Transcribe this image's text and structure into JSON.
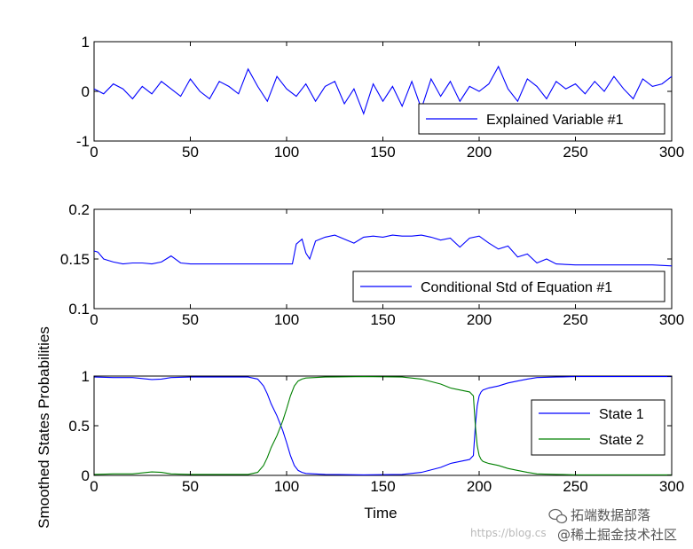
{
  "chart_data": [
    {
      "type": "line",
      "title": "",
      "xlabel": "",
      "ylabel": "",
      "xlim": [
        0,
        300
      ],
      "ylim": [
        -1,
        1
      ],
      "xticks": [
        "0",
        "50",
        "100",
        "150",
        "200",
        "250",
        "300"
      ],
      "yticks": [
        "-1",
        "0",
        "1"
      ],
      "legend": "bottom-right",
      "series": [
        {
          "name": "Explained Variable #1",
          "color": "#0000ff",
          "x": [
            0,
            5,
            10,
            15,
            20,
            25,
            30,
            35,
            40,
            45,
            50,
            55,
            60,
            65,
            70,
            75,
            80,
            85,
            90,
            95,
            100,
            105,
            110,
            115,
            120,
            125,
            130,
            135,
            140,
            145,
            150,
            155,
            160,
            165,
            170,
            175,
            180,
            185,
            190,
            195,
            200,
            205,
            210,
            215,
            220,
            225,
            230,
            235,
            240,
            245,
            250,
            255,
            260,
            265,
            270,
            275,
            280,
            285,
            290,
            295,
            300
          ],
          "y": [
            0.05,
            -0.05,
            0.15,
            0.05,
            -0.15,
            0.1,
            -0.05,
            0.2,
            0.05,
            -0.1,
            0.25,
            0.0,
            -0.15,
            0.2,
            0.1,
            -0.05,
            0.45,
            0.1,
            -0.2,
            0.3,
            0.05,
            -0.1,
            0.15,
            -0.2,
            0.1,
            0.2,
            -0.25,
            0.05,
            -0.45,
            0.15,
            -0.2,
            0.1,
            -0.3,
            0.2,
            -0.35,
            0.25,
            -0.1,
            0.2,
            -0.2,
            0.1,
            0.0,
            0.15,
            0.5,
            0.05,
            -0.2,
            0.25,
            0.1,
            -0.15,
            0.2,
            0.05,
            0.15,
            -0.05,
            0.2,
            0.0,
            0.3,
            0.05,
            -0.15,
            0.25,
            0.1,
            0.15,
            0.3
          ]
        }
      ]
    },
    {
      "type": "line",
      "title": "",
      "xlabel": "",
      "ylabel": "",
      "xlim": [
        0,
        300
      ],
      "ylim": [
        0.1,
        0.2
      ],
      "xticks": [
        "0",
        "50",
        "100",
        "150",
        "200",
        "250",
        "300"
      ],
      "yticks": [
        "0.1",
        "0.15",
        "0.2"
      ],
      "legend": "bottom-right",
      "series": [
        {
          "name": "Conditional Std of Equation #1",
          "color": "#0000ff",
          "x": [
            0,
            2,
            5,
            10,
            15,
            20,
            25,
            30,
            35,
            40,
            45,
            50,
            60,
            70,
            80,
            90,
            100,
            103,
            105,
            108,
            110,
            112,
            115,
            120,
            125,
            130,
            135,
            140,
            145,
            150,
            155,
            160,
            165,
            170,
            175,
            180,
            185,
            190,
            195,
            200,
            205,
            210,
            215,
            220,
            225,
            230,
            235,
            240,
            250,
            260,
            270,
            280,
            290,
            300
          ],
          "y": [
            0.158,
            0.157,
            0.15,
            0.147,
            0.145,
            0.146,
            0.146,
            0.145,
            0.147,
            0.153,
            0.146,
            0.145,
            0.145,
            0.145,
            0.145,
            0.145,
            0.145,
            0.145,
            0.165,
            0.17,
            0.156,
            0.15,
            0.168,
            0.172,
            0.174,
            0.17,
            0.166,
            0.172,
            0.173,
            0.172,
            0.174,
            0.173,
            0.173,
            0.174,
            0.172,
            0.169,
            0.171,
            0.162,
            0.171,
            0.173,
            0.166,
            0.16,
            0.163,
            0.152,
            0.155,
            0.146,
            0.15,
            0.145,
            0.144,
            0.144,
            0.144,
            0.144,
            0.144,
            0.143
          ]
        }
      ]
    },
    {
      "type": "line",
      "title": "",
      "xlabel": "Time",
      "ylabel": "Smoothed States Probabilities",
      "xlim": [
        0,
        300
      ],
      "ylim": [
        0,
        1
      ],
      "xticks": [
        "0",
        "50",
        "100",
        "150",
        "200",
        "250",
        "300"
      ],
      "yticks": [
        "0",
        "0.5",
        "1"
      ],
      "legend": "right",
      "series": [
        {
          "name": "State 1",
          "color": "#0000ff",
          "x": [
            0,
            10,
            20,
            25,
            30,
            35,
            40,
            50,
            60,
            70,
            80,
            85,
            88,
            90,
            92,
            95,
            98,
            100,
            102,
            104,
            106,
            108,
            110,
            120,
            140,
            160,
            170,
            180,
            185,
            190,
            195,
            197,
            198,
            199,
            200,
            201,
            202,
            205,
            210,
            215,
            220,
            225,
            230,
            240,
            250,
            260,
            280,
            300
          ],
          "y": [
            0.99,
            0.985,
            0.985,
            0.975,
            0.965,
            0.97,
            0.985,
            0.99,
            0.99,
            0.99,
            0.99,
            0.97,
            0.9,
            0.82,
            0.72,
            0.6,
            0.45,
            0.33,
            0.2,
            0.1,
            0.05,
            0.03,
            0.02,
            0.01,
            0.005,
            0.01,
            0.03,
            0.08,
            0.12,
            0.14,
            0.16,
            0.2,
            0.5,
            0.7,
            0.8,
            0.84,
            0.86,
            0.88,
            0.9,
            0.93,
            0.95,
            0.97,
            0.985,
            0.99,
            0.995,
            0.995,
            0.995,
            0.995
          ]
        },
        {
          "name": "State 2",
          "color": "#008000",
          "x": [
            0,
            10,
            20,
            25,
            30,
            35,
            40,
            50,
            60,
            70,
            80,
            85,
            88,
            90,
            92,
            95,
            98,
            100,
            102,
            104,
            106,
            108,
            110,
            120,
            140,
            160,
            170,
            180,
            185,
            190,
            195,
            197,
            198,
            199,
            200,
            201,
            202,
            205,
            210,
            215,
            220,
            225,
            230,
            240,
            250,
            260,
            280,
            300
          ],
          "y": [
            0.01,
            0.015,
            0.015,
            0.025,
            0.035,
            0.03,
            0.015,
            0.01,
            0.01,
            0.01,
            0.01,
            0.03,
            0.1,
            0.18,
            0.28,
            0.4,
            0.55,
            0.67,
            0.8,
            0.9,
            0.95,
            0.97,
            0.98,
            0.99,
            0.995,
            0.99,
            0.97,
            0.92,
            0.88,
            0.86,
            0.84,
            0.8,
            0.5,
            0.3,
            0.2,
            0.16,
            0.14,
            0.12,
            0.1,
            0.07,
            0.05,
            0.03,
            0.015,
            0.01,
            0.005,
            0.005,
            0.005,
            0.005
          ]
        }
      ]
    }
  ],
  "watermark": {
    "url_text": "https://blog.cs",
    "brand_line1": "拓端数据部落",
    "brand_line2": "@稀土掘金技术社区"
  }
}
